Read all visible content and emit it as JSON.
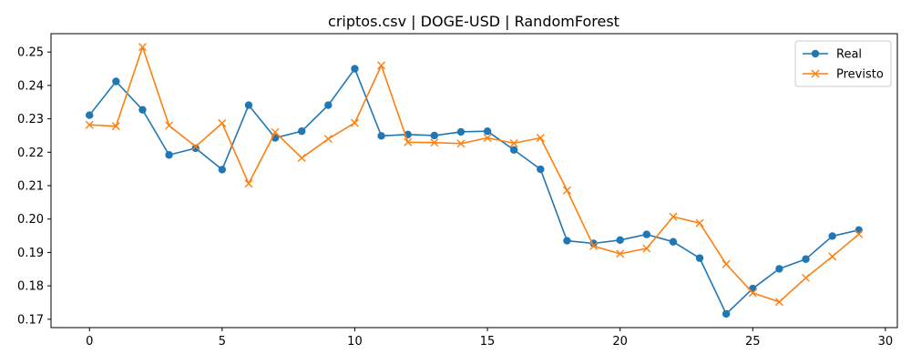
{
  "chart_data": {
    "type": "line",
    "title": "criptos.csv | DOGE-USD | RandomForest",
    "xlabel": "",
    "ylabel": "",
    "xlim": [
      -1.45,
      30.45
    ],
    "ylim": [
      0.1675,
      0.2555
    ],
    "x_ticks": [
      0,
      5,
      10,
      15,
      20,
      25,
      30
    ],
    "y_ticks": [
      0.17,
      0.18,
      0.19,
      0.2,
      0.21,
      0.22,
      0.23,
      0.24,
      0.25
    ],
    "y_tick_labels": [
      "0.17",
      "0.18",
      "0.19",
      "0.20",
      "0.21",
      "0.22",
      "0.23",
      "0.24",
      "0.25"
    ],
    "x": [
      0,
      1,
      2,
      3,
      4,
      5,
      6,
      7,
      8,
      9,
      10,
      11,
      12,
      13,
      14,
      15,
      16,
      17,
      18,
      19,
      20,
      21,
      22,
      23,
      24,
      25,
      26,
      27,
      28,
      29
    ],
    "grid": false,
    "legend_position": "top-right",
    "series": [
      {
        "name": "Real",
        "color": "#1f77b4",
        "marker": "circle",
        "values": [
          0.2311,
          0.2412,
          0.2327,
          0.2192,
          0.2212,
          0.2148,
          0.2341,
          0.2243,
          0.2263,
          0.2341,
          0.245,
          0.2249,
          0.2253,
          0.225,
          0.2261,
          0.2263,
          0.2207,
          0.2149,
          0.1935,
          0.1927,
          0.1937,
          0.1954,
          0.1932,
          0.1883,
          0.1716,
          0.1792,
          0.1851,
          0.188,
          0.1949,
          0.1967
        ]
      },
      {
        "name": "Previsto",
        "color": "#ff7f0e",
        "marker": "x",
        "values": [
          0.2282,
          0.2278,
          0.2515,
          0.228,
          0.2217,
          0.2287,
          0.2106,
          0.226,
          0.2183,
          0.224,
          0.2288,
          0.246,
          0.223,
          0.2229,
          0.2226,
          0.2243,
          0.2227,
          0.2243,
          0.2086,
          0.1919,
          0.1896,
          0.1912,
          0.2007,
          0.1988,
          0.1865,
          0.1779,
          0.1752,
          0.1824,
          0.1888,
          0.1955
        ]
      }
    ]
  }
}
